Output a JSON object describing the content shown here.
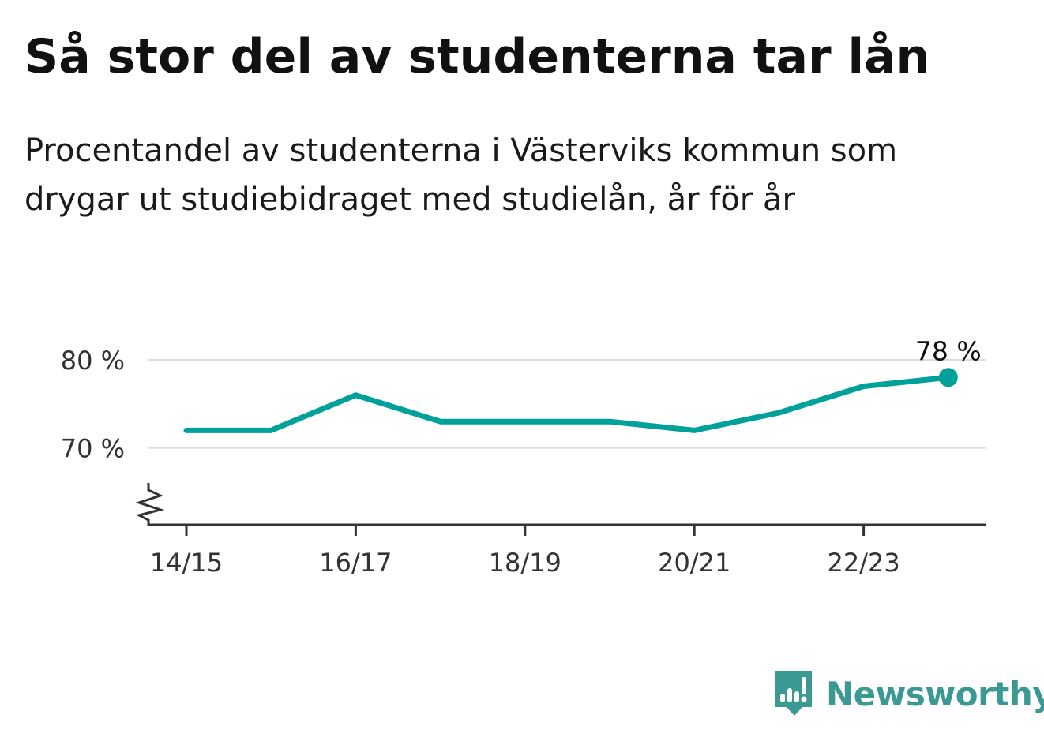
{
  "header": {
    "title": "Så stor del av studenterna tar lån",
    "subtitle": "Procentandel av studenterna i Västerviks kommun som drygar ut studiebidraget med studielån, år för år"
  },
  "chart_data": {
    "type": "line",
    "title": "Så stor del av studenterna tar lån",
    "subtitle": "Procentandel av studenterna i Västerviks kommun som drygar ut studiebidraget med studielån, år för år",
    "x": [
      "14/15",
      "15/16",
      "16/17",
      "17/18",
      "18/19",
      "19/20",
      "20/21",
      "21/22",
      "22/23",
      "23/24"
    ],
    "series": [
      {
        "values": [
          72,
          72,
          76,
          73,
          73,
          73,
          72,
          74,
          77,
          78
        ]
      }
    ],
    "x_tick_labels": [
      "14/15",
      "16/17",
      "18/19",
      "20/21",
      "22/23"
    ],
    "y_ticks": [
      {
        "value": 70,
        "label": "70 %"
      },
      {
        "value": 80,
        "label": "80 %"
      }
    ],
    "ylim": [
      61.3,
      82.5
    ],
    "axis_break": true,
    "grid": true,
    "end_label": "78 %",
    "colors": {
      "line": "#00a19a",
      "grid": "#dddddd",
      "axis": "#333333"
    }
  },
  "footer": {
    "brand": "Newsworthy",
    "brand_color": "#3a9a93",
    "logo_icon": "bar-chart-speech-bubble-icon"
  }
}
